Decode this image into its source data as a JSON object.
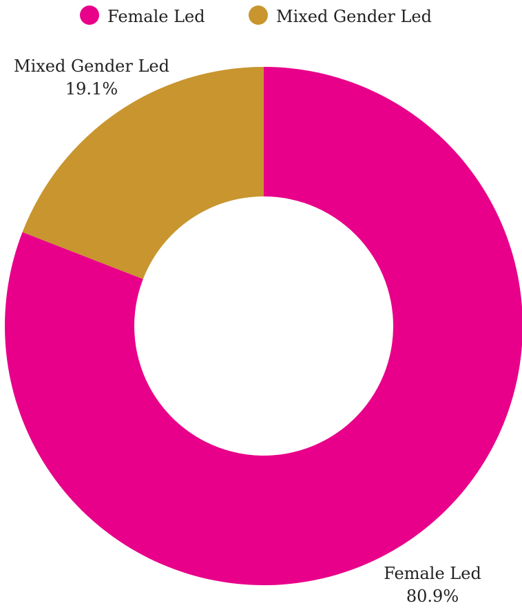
{
  "chart_data": {
    "type": "pie",
    "donut": true,
    "title": "",
    "legend_position": "top",
    "slices": [
      {
        "label": "Female Led",
        "value": 80.9,
        "value_label": "80.9%",
        "color": "#E8008A"
      },
      {
        "label": "Mixed Gender Led",
        "value": 19.1,
        "value_label": "19.1%",
        "color": "#C8952E"
      }
    ]
  }
}
